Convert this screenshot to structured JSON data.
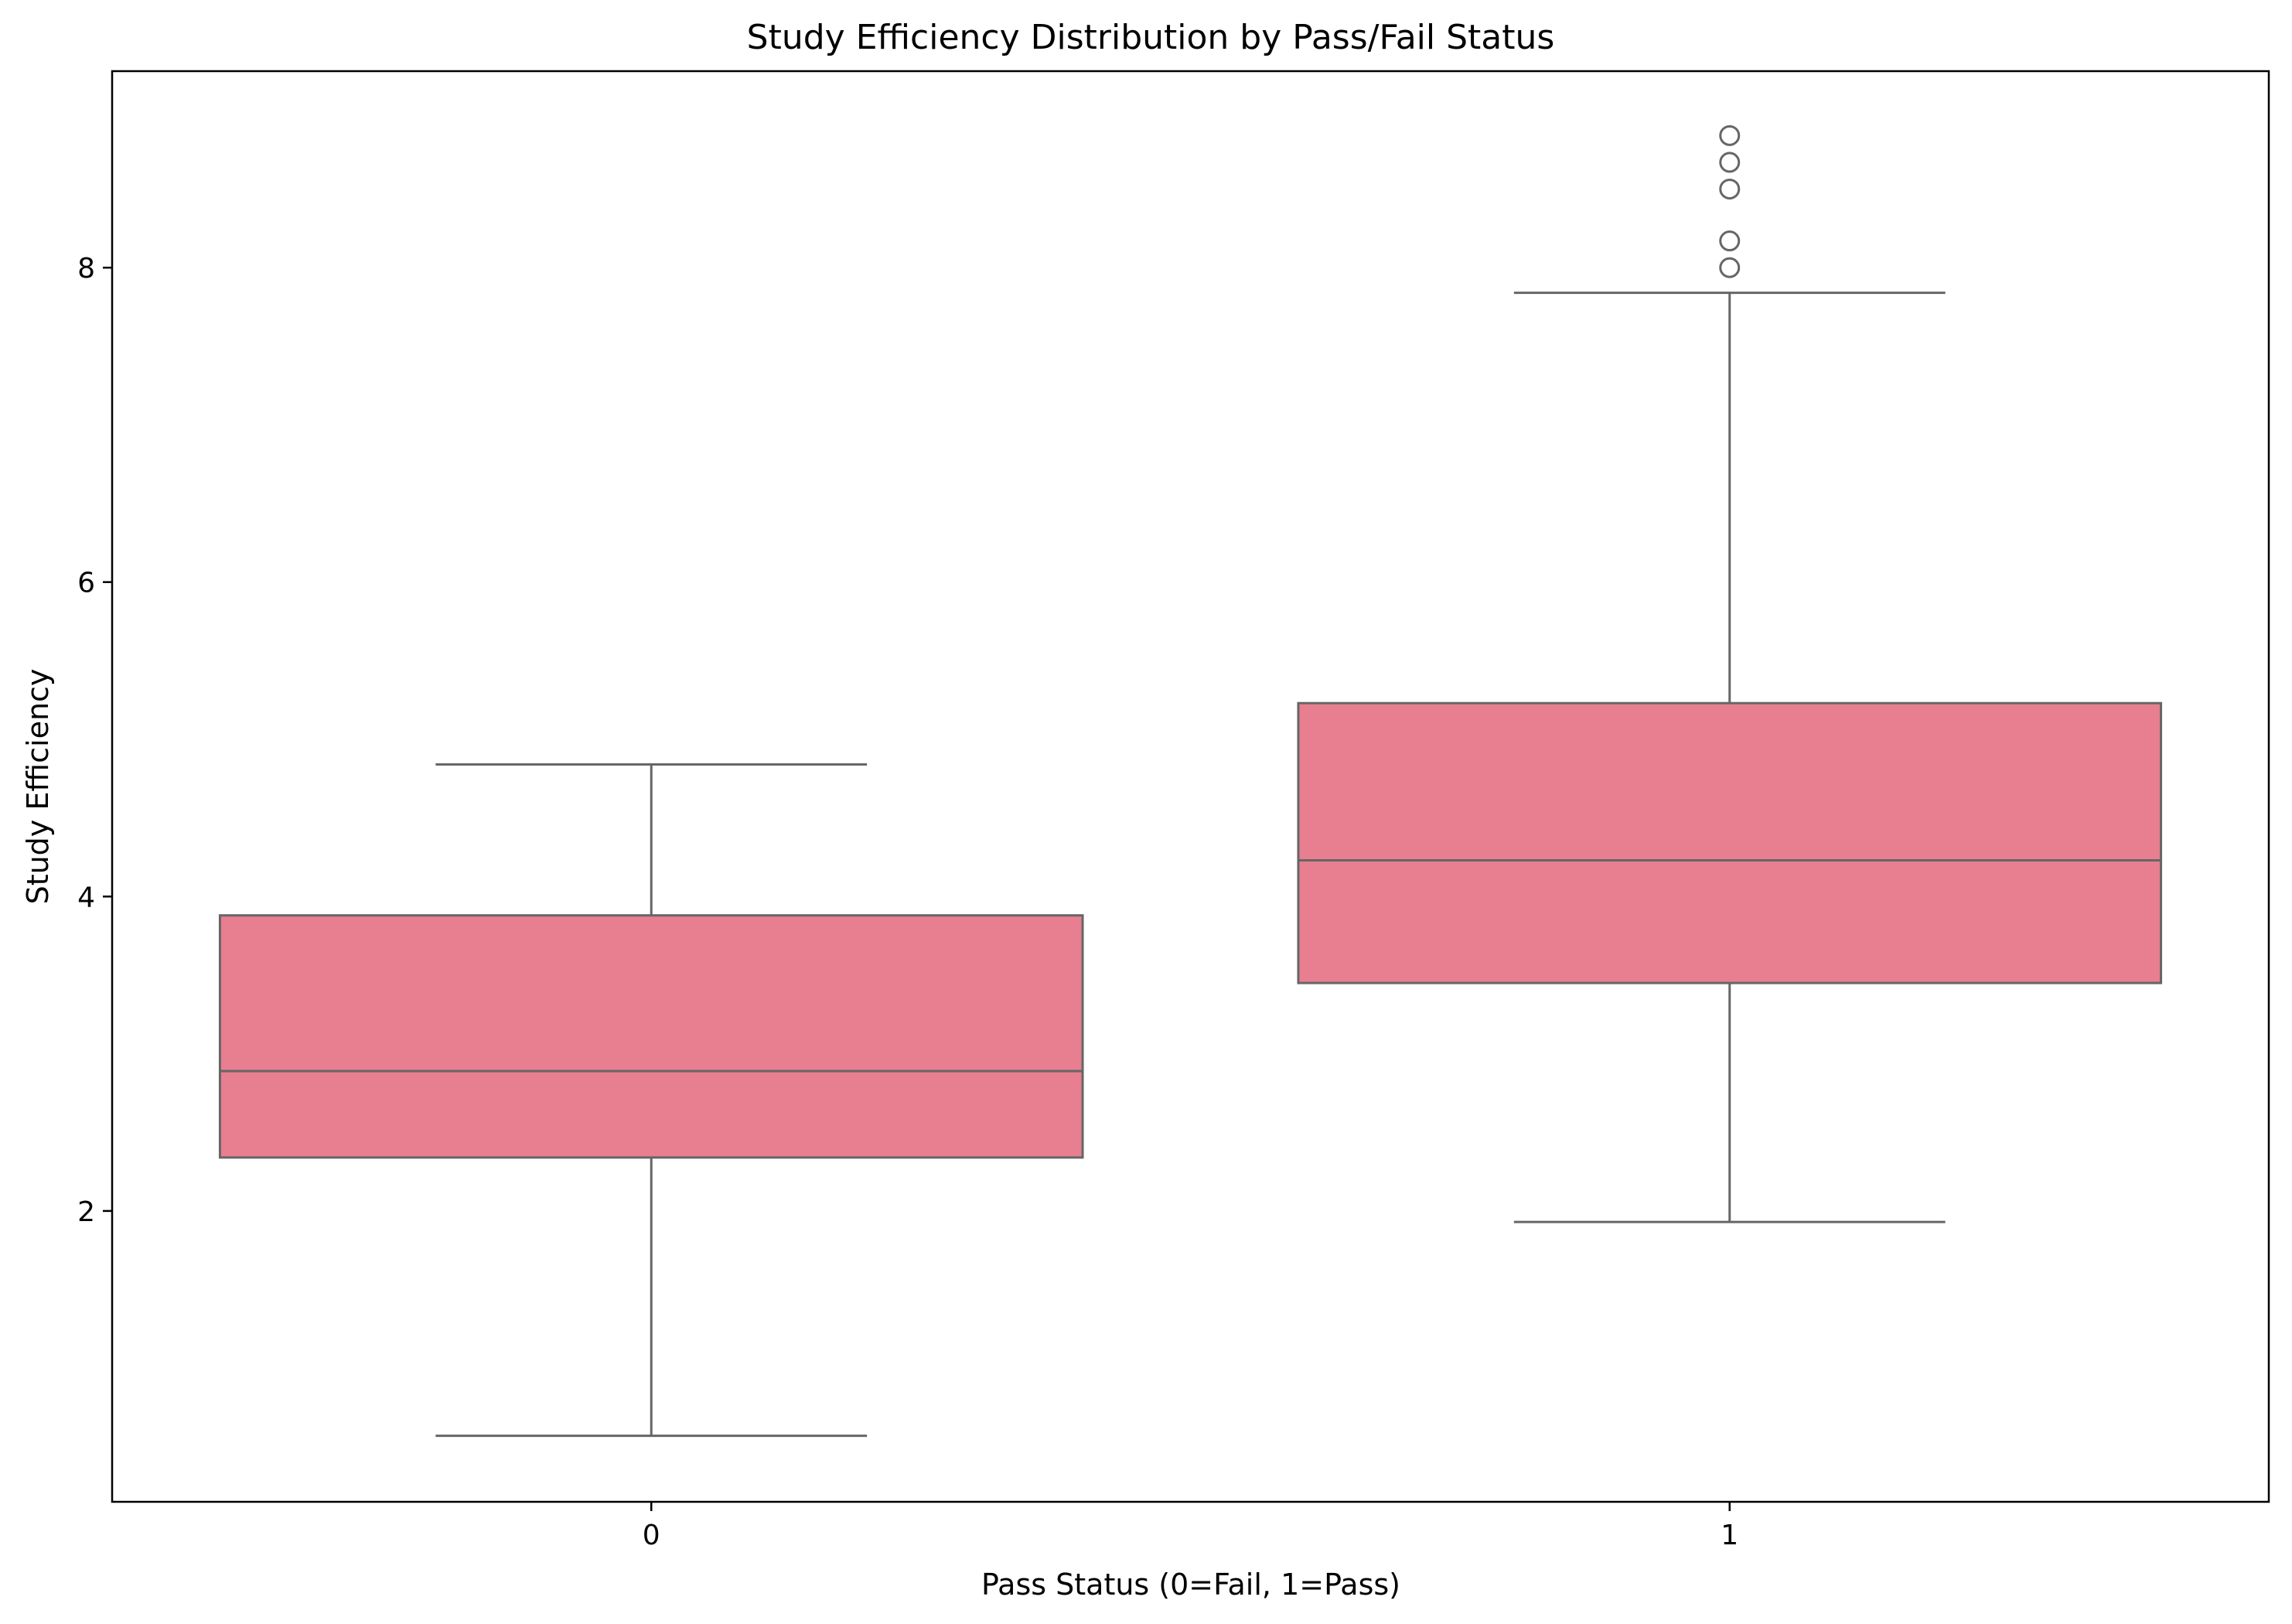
{
  "chart_data": {
    "type": "box",
    "title": "Study Efficiency Distribution by Pass/Fail Status",
    "xlabel": "Pass Status (0=Fail, 1=Pass)",
    "ylabel": "Study Efficiency",
    "categories": [
      "0",
      "1"
    ],
    "ylim": [
      0.15,
      9.25
    ],
    "yticks": [
      2,
      4,
      6,
      8
    ],
    "ytick_labels": [
      "2",
      "4",
      "6",
      "8"
    ],
    "grid": false,
    "boxes": [
      {
        "category": "0",
        "whisker_low": 0.57,
        "q1": 2.34,
        "median": 2.89,
        "q3": 3.88,
        "whisker_high": 4.84,
        "outliers": []
      },
      {
        "category": "1",
        "whisker_low": 1.93,
        "q1": 3.45,
        "median": 4.23,
        "q3": 5.23,
        "whisker_high": 7.84,
        "outliers": [
          8.0,
          8.17,
          8.5,
          8.67,
          8.84
        ]
      }
    ],
    "colors": {
      "box_fill": "#e77f91",
      "line": "#666666",
      "axis": "#000000"
    }
  }
}
